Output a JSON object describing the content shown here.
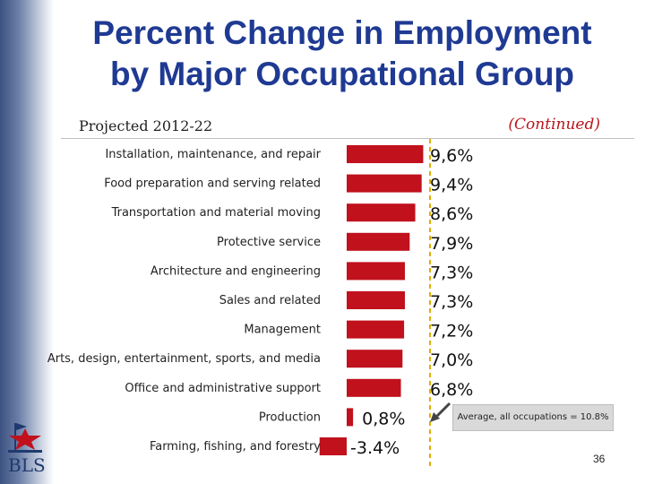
{
  "slide": {
    "title_line1": "Percent Change in Employment",
    "title_line2": "by Major Occupational Group",
    "subtitle": "Projected 2012-22",
    "continued": "(Continued)",
    "average_note": "Average, all occupations = 10.8%",
    "page_number": "36",
    "logo_text": "BLS",
    "colors": {
      "title": "#1f3a93",
      "bar": "#c0111c",
      "continued": "#b8161c",
      "average_line": "#e0b000"
    }
  },
  "chart_data": {
    "type": "bar",
    "orientation": "horizontal",
    "title": "Percent Change in Employment by Major Occupational Group",
    "subtitle": "Projected 2012-22",
    "categories": [
      "Installation, maintenance, and repair",
      "Food preparation and serving related",
      "Transportation and material moving",
      "Protective service",
      "Architecture and engineering",
      "Sales and related",
      "Management",
      "Arts, design, entertainment, sports, and media",
      "Office and administrative support",
      "Production",
      "Farming, fishing, and forestry"
    ],
    "values": [
      9.6,
      9.4,
      8.6,
      7.9,
      7.3,
      7.3,
      7.2,
      7.0,
      6.8,
      0.8,
      -3.4
    ],
    "value_labels": [
      "9,6%",
      "9,4%",
      "8,6%",
      "7,9%",
      "7,3%",
      "7,3%",
      "7,2%",
      "7,0%",
      "6,8%",
      "0,8%",
      "-3.4%"
    ],
    "reference_line": {
      "value": 10.8,
      "label": "Average, all occupations = 10.8%"
    },
    "xlim": [
      -3.4,
      10.8
    ],
    "grid": false,
    "legend": "none"
  }
}
